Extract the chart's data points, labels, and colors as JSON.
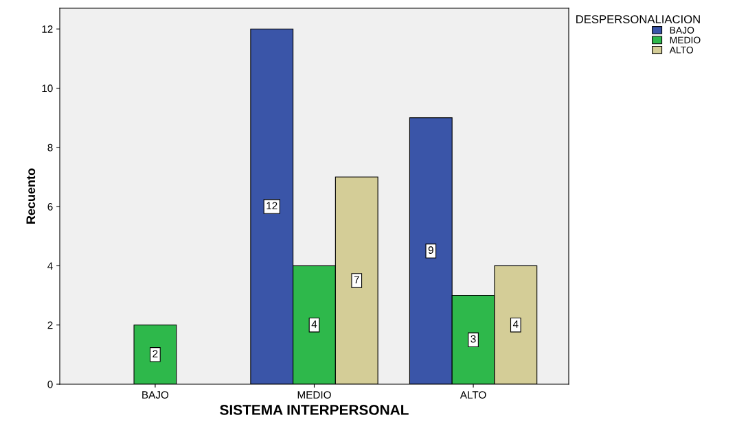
{
  "chart_data": {
    "type": "bar",
    "xlabel": "SISTEMA INTERPERSONAL",
    "ylabel": "Recuento",
    "legend_title": "DESPERSONALIACION",
    "categories": [
      "BAJO",
      "MEDIO",
      "ALTO"
    ],
    "series": [
      {
        "name": "BAJO",
        "color": "#3a55a8",
        "values": [
          null,
          12,
          9
        ]
      },
      {
        "name": "MEDIO",
        "color": "#2eb84b",
        "values": [
          2,
          4,
          3
        ]
      },
      {
        "name": "ALTO",
        "color": "#d4cd97",
        "values": [
          null,
          7,
          4
        ]
      }
    ],
    "ylim": [
      0,
      12.7
    ],
    "yticks": [
      0,
      2,
      4,
      6,
      8,
      10,
      12
    ],
    "grid": false,
    "legend": "top right",
    "data_labels": true
  }
}
